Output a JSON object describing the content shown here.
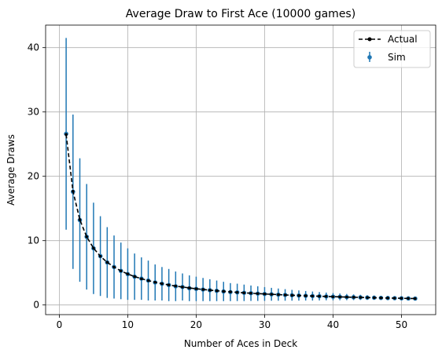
{
  "chart_data": {
    "type": "scatter",
    "title": "Average Draw to First Ace (10000 games)",
    "xlabel": "Number of Aces in Deck",
    "ylabel": "Average Draws",
    "xlim": [
      -2,
      55
    ],
    "ylim": [
      -1.5,
      43.5
    ],
    "xticks": [
      0,
      10,
      20,
      30,
      40,
      50
    ],
    "yticks": [
      0,
      10,
      20,
      30,
      40
    ],
    "grid": true,
    "legend_position": "top-right",
    "colors": {
      "sim": "#1f77b4",
      "actual": "#000000",
      "grid": "#b0b0b0"
    },
    "series": [
      {
        "name": "Actual",
        "style": "dashed-line-with-points",
        "x": [
          1,
          2,
          3,
          4,
          5,
          6,
          7,
          8,
          9,
          10,
          11,
          12,
          13,
          14,
          15,
          16,
          17,
          18,
          19,
          20,
          21,
          22,
          23,
          24,
          25,
          26,
          27,
          28,
          29,
          30,
          31,
          32,
          33,
          34,
          35,
          36,
          37,
          38,
          39,
          40,
          41,
          42,
          43,
          44,
          45,
          46,
          47,
          48,
          49,
          50,
          51,
          52
        ],
        "y": [
          26.5,
          17.67,
          13.25,
          10.6,
          8.83,
          7.57,
          6.63,
          5.89,
          5.3,
          4.82,
          4.42,
          4.08,
          3.79,
          3.53,
          3.31,
          3.12,
          2.94,
          2.79,
          2.65,
          2.52,
          2.41,
          2.3,
          2.21,
          2.12,
          2.04,
          1.96,
          1.89,
          1.83,
          1.77,
          1.71,
          1.66,
          1.61,
          1.56,
          1.51,
          1.47,
          1.43,
          1.39,
          1.36,
          1.33,
          1.29,
          1.26,
          1.23,
          1.2,
          1.18,
          1.15,
          1.13,
          1.1,
          1.08,
          1.06,
          1.04,
          1.02,
          1.0
        ]
      },
      {
        "name": "Sim",
        "style": "errorbar",
        "x": [
          1,
          2,
          3,
          4,
          5,
          6,
          7,
          8,
          9,
          10,
          11,
          12,
          13,
          14,
          15,
          16,
          17,
          18,
          19,
          20,
          21,
          22,
          23,
          24,
          25,
          26,
          27,
          28,
          29,
          30,
          31,
          32,
          33,
          34,
          35,
          36,
          37,
          38,
          39,
          40,
          41,
          42,
          43,
          44,
          45,
          46,
          47,
          48,
          49,
          50,
          51,
          52
        ],
        "y": [
          26.6,
          17.6,
          13.2,
          10.6,
          8.8,
          7.6,
          6.6,
          5.9,
          5.3,
          4.8,
          4.4,
          4.1,
          3.8,
          3.5,
          3.3,
          3.1,
          2.9,
          2.8,
          2.6,
          2.5,
          2.4,
          2.3,
          2.2,
          2.1,
          2.0,
          1.96,
          1.89,
          1.83,
          1.77,
          1.71,
          1.66,
          1.61,
          1.56,
          1.51,
          1.47,
          1.43,
          1.39,
          1.36,
          1.33,
          1.29,
          1.26,
          1.23,
          1.2,
          1.18,
          1.15,
          1.13,
          1.1,
          1.08,
          1.06,
          1.04,
          1.02,
          1.0
        ],
        "yerr": [
          14.9,
          12.0,
          9.6,
          8.2,
          7.1,
          6.2,
          5.5,
          4.9,
          4.4,
          4.0,
          3.6,
          3.3,
          3.1,
          2.8,
          2.6,
          2.5,
          2.3,
          2.1,
          2.0,
          1.9,
          1.8,
          1.7,
          1.6,
          1.5,
          1.4,
          1.35,
          1.28,
          1.2,
          1.14,
          1.07,
          1.0,
          0.95,
          0.9,
          0.84,
          0.79,
          0.74,
          0.7,
          0.65,
          0.6,
          0.56,
          0.52,
          0.48,
          0.44,
          0.4,
          0.36,
          0.32,
          0.28,
          0.24,
          0.2,
          0.15,
          0.1,
          0.0
        ]
      }
    ]
  }
}
